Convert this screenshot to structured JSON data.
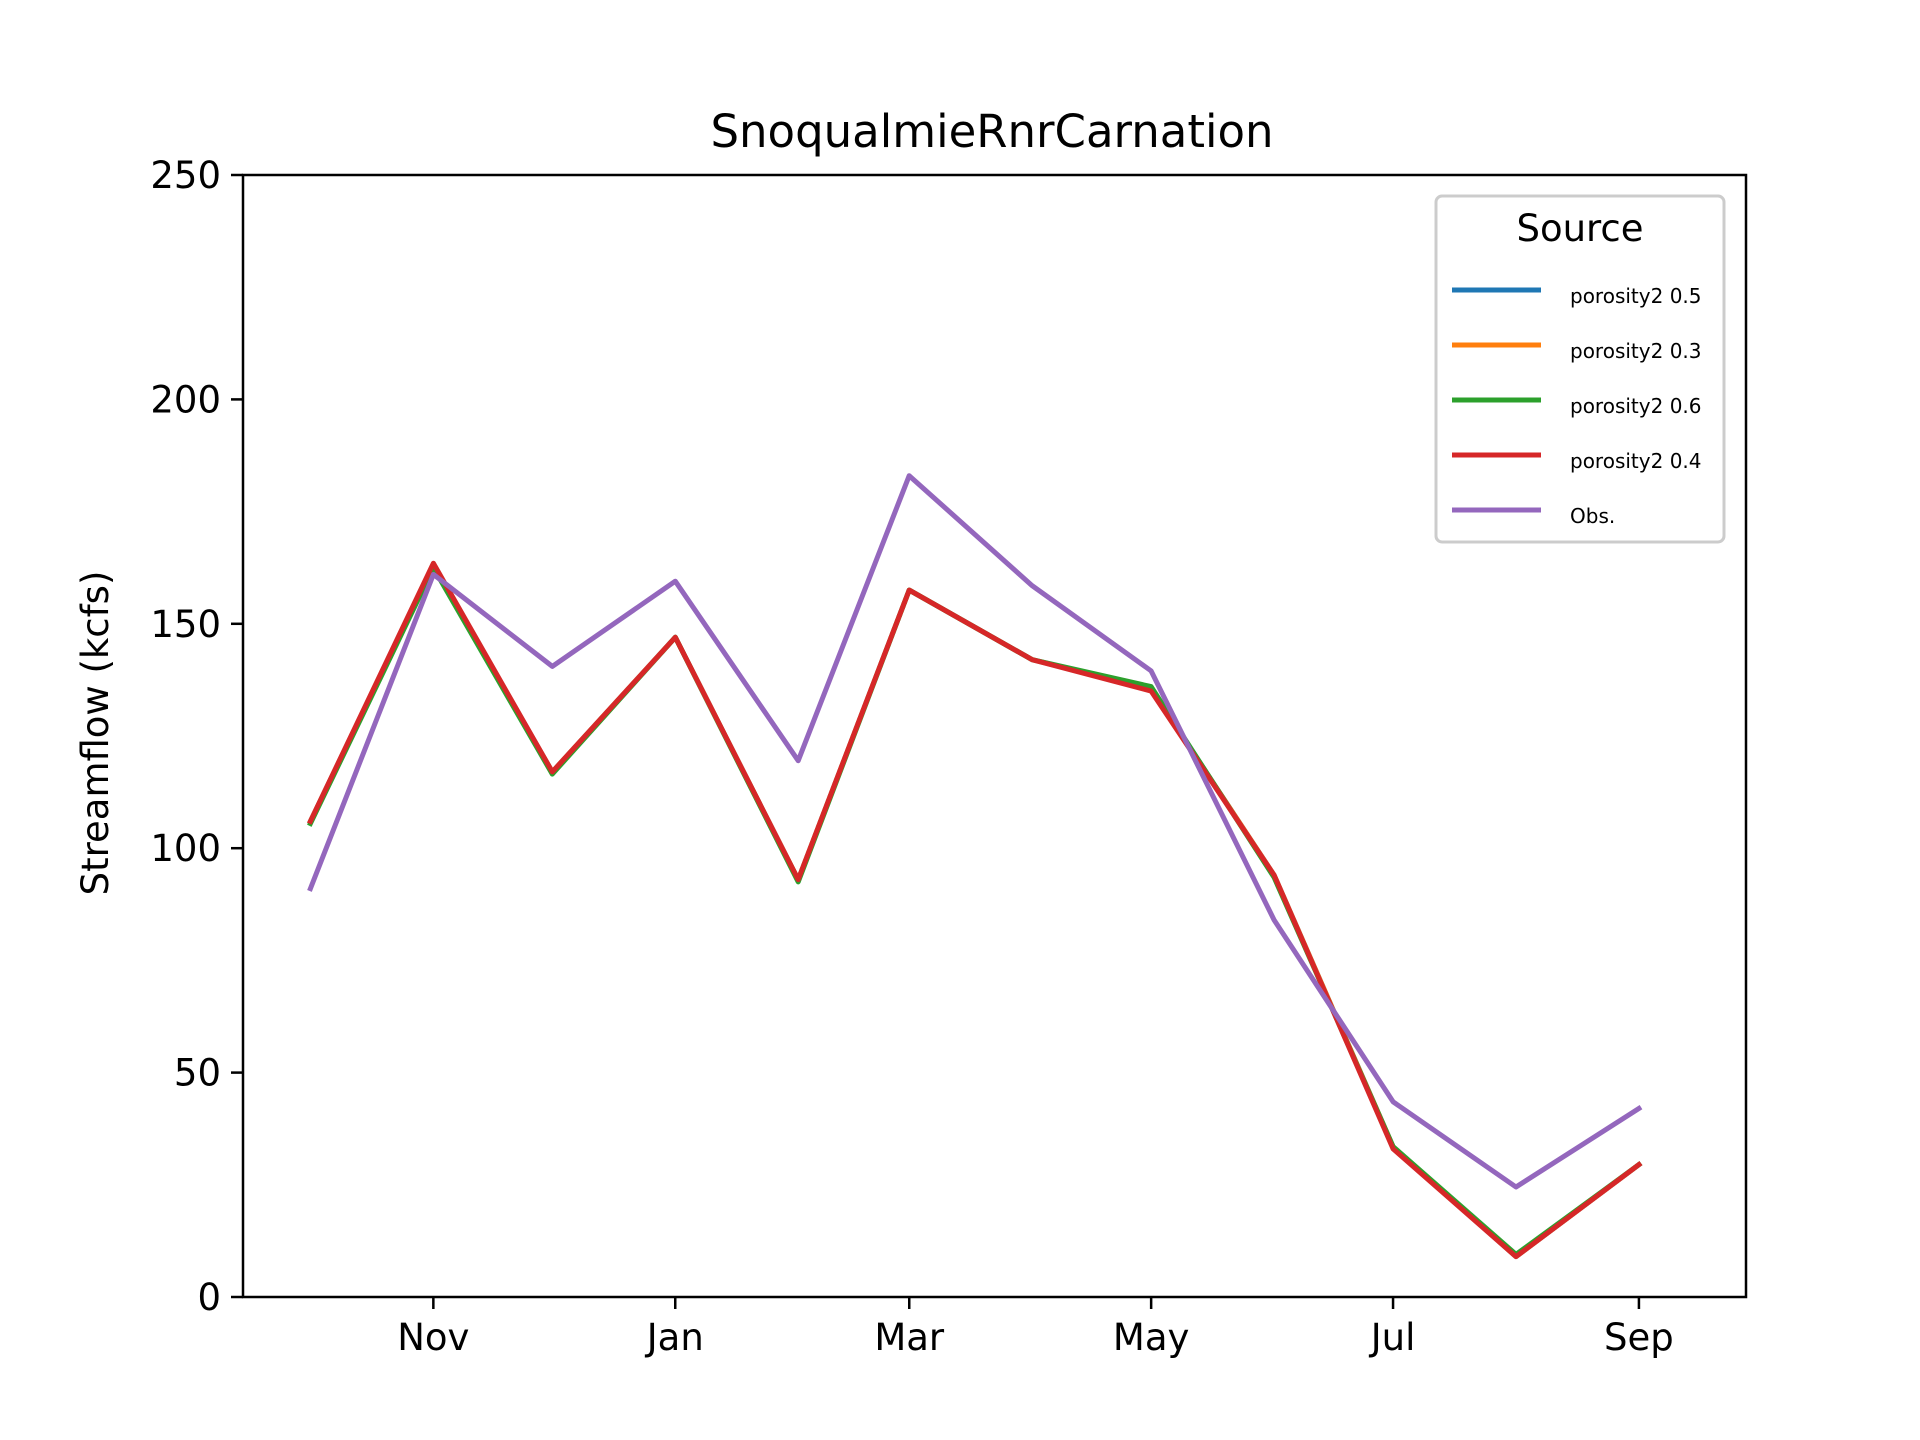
{
  "chart_data": {
    "type": "line",
    "title": "SnoqualmieRnrCarnation",
    "xlabel": "",
    "ylabel": "Streamflow (kcfs)",
    "x": [
      "2000-10-01",
      "2000-11-01",
      "2000-12-01",
      "2001-01-01",
      "2001-02-01",
      "2001-03-01",
      "2001-04-01",
      "2001-05-01",
      "2001-06-01",
      "2001-07-01",
      "2001-08-01",
      "2001-09-01"
    ],
    "xlim": [
      "2000-09-14",
      "2001-09-28"
    ],
    "x_ticks": [
      {
        "date": "2000-11-01",
        "label": "Nov"
      },
      {
        "date": "2001-01-01",
        "label": "Jan"
      },
      {
        "date": "2001-03-01",
        "label": "Mar"
      },
      {
        "date": "2001-05-01",
        "label": "May"
      },
      {
        "date": "2001-07-01",
        "label": "Jul"
      },
      {
        "date": "2001-09-01",
        "label": "Sep"
      }
    ],
    "ylim": [
      0,
      250
    ],
    "y_ticks": [
      0,
      50,
      100,
      150,
      200,
      250
    ],
    "grid": false,
    "legend": {
      "title": "Source",
      "position": "top-right"
    },
    "series": [
      {
        "name": "porosity2 0.5",
        "color": "#1f77b4",
        "values": [
          106,
          163,
          117,
          147,
          93,
          157.5,
          142,
          135.5,
          94,
          33.5,
          9,
          29.5
        ]
      },
      {
        "name": "porosity2 0.3",
        "color": "#ff7f0e",
        "values": [
          106,
          163,
          117,
          147,
          93,
          157.5,
          142,
          135.5,
          94,
          33.5,
          9,
          29.5
        ]
      },
      {
        "name": "porosity2 0.6",
        "color": "#2ca02c",
        "values": [
          105.5,
          162.5,
          116.5,
          147,
          92.5,
          157.5,
          142,
          136,
          93.5,
          33.5,
          9.5,
          29.5
        ]
      },
      {
        "name": "porosity2 0.4",
        "color": "#d62728",
        "values": [
          106,
          163.5,
          117,
          147,
          93,
          157.5,
          142,
          135,
          94,
          33,
          9,
          29.5
        ]
      },
      {
        "name": "Obs.",
        "color": "#9467bd",
        "values": [
          91,
          161,
          140.5,
          159.5,
          119.5,
          183,
          158.5,
          139.5,
          84,
          43.5,
          24.5,
          42
        ]
      }
    ]
  }
}
